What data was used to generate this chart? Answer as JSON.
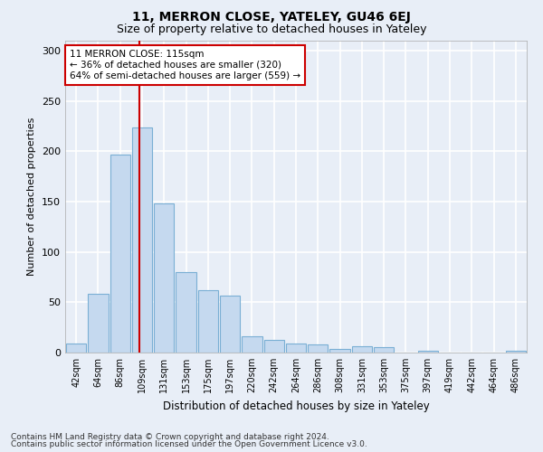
{
  "title": "11, MERRON CLOSE, YATELEY, GU46 6EJ",
  "subtitle": "Size of property relative to detached houses in Yateley",
  "xlabel": "Distribution of detached houses by size in Yateley",
  "ylabel": "Number of detached properties",
  "bar_color": "#c5d9ef",
  "bar_edge_color": "#7aafd4",
  "categories": [
    "42sqm",
    "64sqm",
    "86sqm",
    "109sqm",
    "131sqm",
    "153sqm",
    "175sqm",
    "197sqm",
    "220sqm",
    "242sqm",
    "264sqm",
    "286sqm",
    "308sqm",
    "331sqm",
    "353sqm",
    "375sqm",
    "397sqm",
    "419sqm",
    "442sqm",
    "464sqm",
    "486sqm"
  ],
  "values": [
    9,
    58,
    197,
    224,
    148,
    80,
    62,
    57,
    16,
    13,
    9,
    8,
    4,
    6,
    5,
    0,
    2,
    0,
    0,
    0,
    2
  ],
  "ylim": [
    0,
    310
  ],
  "yticks": [
    0,
    50,
    100,
    150,
    200,
    250,
    300
  ],
  "red_line_index": 3.5,
  "marker_label": "11 MERRON CLOSE: 115sqm",
  "annotation_line1": "← 36% of detached houses are smaller (320)",
  "annotation_line2": "64% of semi-detached houses are larger (559) →",
  "footnote1": "Contains HM Land Registry data © Crown copyright and database right 2024.",
  "footnote2": "Contains public sector information licensed under the Open Government Licence v3.0.",
  "background_color": "#e8eef7",
  "grid_color": "#ffffff",
  "annotation_box_color": "#ffffff",
  "annotation_box_edge": "#cc0000",
  "red_line_color": "#cc0000",
  "title_fontsize": 10,
  "subtitle_fontsize": 9
}
